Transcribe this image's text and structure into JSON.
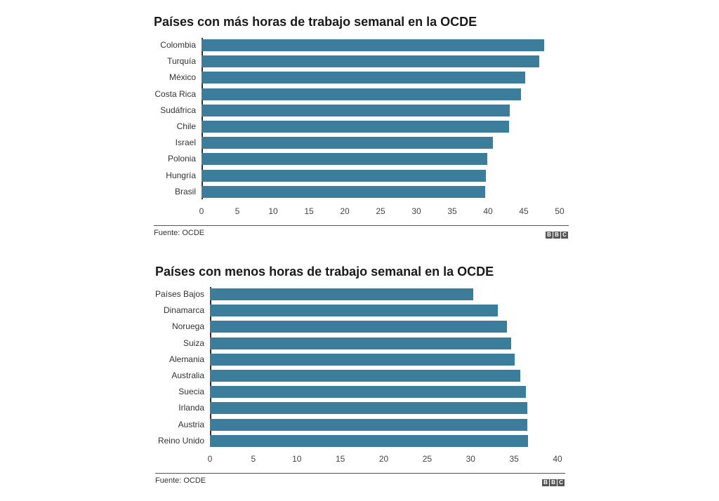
{
  "chart_data": [
    {
      "type": "bar",
      "orientation": "horizontal",
      "title": "Países con más horas de trabajo semanal en la OCDE",
      "categories": [
        "Colombia",
        "Turquía",
        "México",
        "Costa Rica",
        "Sudáfrica",
        "Chile",
        "Israel",
        "Polonia",
        "Hungría",
        "Brasil"
      ],
      "values": [
        47.8,
        47.2,
        45.2,
        44.6,
        43.0,
        42.9,
        40.7,
        39.9,
        39.7,
        39.6
      ],
      "xlabel": "",
      "ylabel": "",
      "xlim": [
        0,
        50
      ],
      "xticks": [
        "0",
        "5",
        "10",
        "15",
        "20",
        "25",
        "30",
        "35",
        "40",
        "45",
        "50"
      ],
      "grid": false,
      "source": "Fuente: OCDE",
      "color": "#3b7d9b"
    },
    {
      "type": "bar",
      "orientation": "horizontal",
      "title": "Países con menos horas de trabajo semanal en la OCDE",
      "categories": [
        "Países Bajos",
        "Dinamarca",
        "Noruega",
        "Suiza",
        "Alemania",
        "Australia",
        "Suecia",
        "Irlanda",
        "Austria",
        "Reino Unido"
      ],
      "values": [
        30.3,
        33.1,
        34.2,
        34.7,
        35.1,
        35.7,
        36.4,
        36.5,
        36.5,
        36.6
      ],
      "xlabel": "",
      "ylabel": "",
      "xlim": [
        0,
        40
      ],
      "xticks": [
        "0",
        "5",
        "10",
        "15",
        "20",
        "25",
        "30",
        "35",
        "40"
      ],
      "grid": false,
      "source": "Fuente: OCDE",
      "color": "#3b7d9b"
    }
  ],
  "logo": [
    "B",
    "B",
    "C"
  ]
}
